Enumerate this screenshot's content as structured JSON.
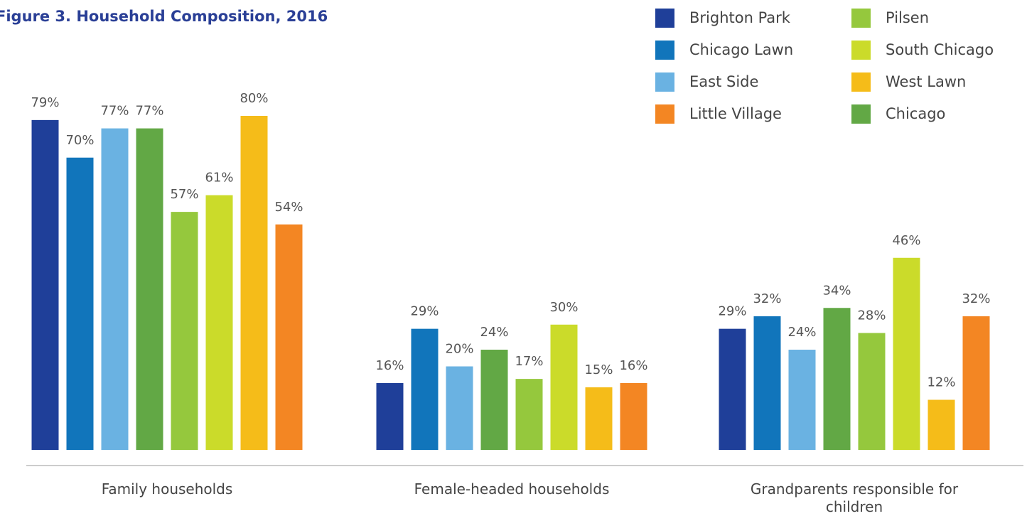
{
  "chart_data": {
    "type": "bar",
    "title": "Figure 3. Household Composition, 2016",
    "categories": [
      "Family households",
      "Female-headed households",
      "Grandparents responsible for children"
    ],
    "series": [
      {
        "name": "Brighton Park",
        "color": "#1f3f99",
        "values": [
          79,
          16,
          29
        ],
        "value_labels": [
          "79%",
          "16%",
          "29%"
        ]
      },
      {
        "name": "Chicago Lawn",
        "color": "#1175bb",
        "values": [
          70,
          29,
          32
        ],
        "value_labels": [
          "70%",
          "29%",
          "32%"
        ]
      },
      {
        "name": "East Side",
        "color": "#6ab2e2",
        "values": [
          77,
          20,
          24
        ],
        "value_labels": [
          "77%",
          "20%",
          "24%"
        ]
      },
      {
        "name": "Little Village",
        "color": "#f38623",
        "values": [
          54,
          16,
          32
        ],
        "value_labels": [
          "54%",
          "16%",
          "32%"
        ]
      },
      {
        "name": "Pilsen",
        "color": "#95c83d",
        "values": [
          57,
          17,
          28
        ],
        "value_labels": [
          "57%",
          "17%",
          "28%"
        ]
      },
      {
        "name": "South Chicago",
        "color": "#cbdb2a",
        "values": [
          61,
          30,
          46
        ],
        "value_labels": [
          "61%",
          "30%",
          "46%"
        ]
      },
      {
        "name": "West Lawn",
        "color": "#f5bc19",
        "values": [
          80,
          15,
          12
        ],
        "value_labels": [
          "80%",
          "15%",
          "12%"
        ]
      },
      {
        "name": "Chicago",
        "color": "#62a845",
        "values": [
          77,
          24,
          34
        ],
        "value_labels": [
          "77%",
          "24%",
          "34%"
        ]
      }
    ],
    "bar_order": [
      0,
      1,
      2,
      7,
      4,
      5,
      6,
      3
    ],
    "ylim": [
      0,
      80
    ],
    "grid": false
  }
}
